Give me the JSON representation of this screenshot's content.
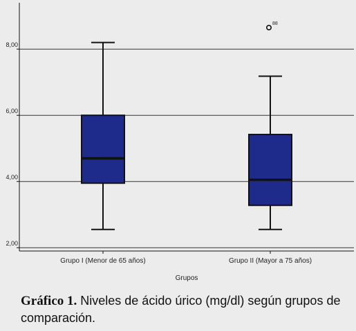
{
  "chart_data": {
    "type": "boxplot",
    "xlabel": "Grupos",
    "ylabel": "",
    "ylim": [
      1.9,
      9.4
    ],
    "yticks": [
      2.0,
      4.0,
      6.0,
      8.0
    ],
    "ytick_labels": [
      "2,00",
      "4,00",
      "6,00",
      "8,00"
    ],
    "grid": true,
    "colors": {
      "box": "#1e2b8a",
      "line": "#111111",
      "grid": "#333333"
    },
    "categories": [
      "Grupo I (Menor de 65 años)",
      "Grupo II (Mayor a 75 años)"
    ],
    "boxes": [
      {
        "category": "Grupo I (Menor de 65 años)",
        "min": 2.55,
        "q1": 3.95,
        "median": 4.7,
        "q3": 6.0,
        "max": 8.2,
        "outliers": []
      },
      {
        "category": "Grupo II (Mayor a 75 años)",
        "min": 2.55,
        "q1": 3.28,
        "median": 4.05,
        "q3": 5.42,
        "max": 7.18,
        "outliers": [
          {
            "value": 8.65,
            "label": "88"
          }
        ]
      }
    ]
  },
  "caption": {
    "bold": "Gráfico 1.",
    "text": " Niveles de ácido úrico (mg/dl) según grupos de comparación."
  }
}
